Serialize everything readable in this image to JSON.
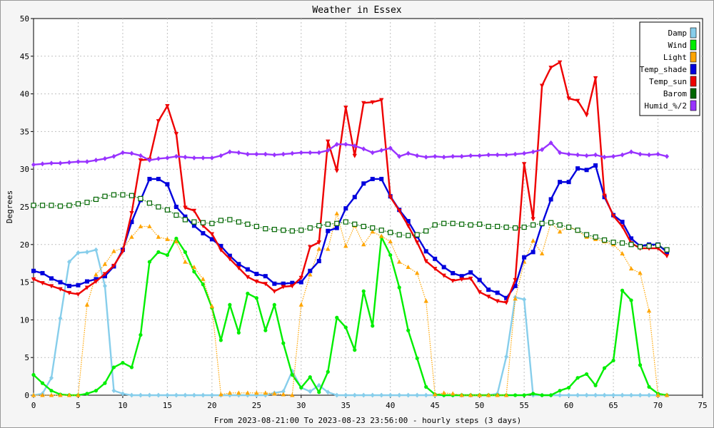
{
  "chart_data": {
    "type": "line",
    "title": "Weather in Essex",
    "ylabel": "Degrees",
    "xlabel": "From 2023-08-21:00 To 2023-08-23 23:56:00 - hourly steps (3 days)",
    "xlim": [
      0,
      75
    ],
    "ylim": [
      0,
      50
    ],
    "x_ticks": [
      0,
      5,
      10,
      15,
      20,
      25,
      30,
      35,
      40,
      45,
      50,
      55,
      60,
      65,
      70,
      75
    ],
    "y_ticks": [
      0,
      5,
      10,
      15,
      20,
      25,
      30,
      35,
      40,
      45,
      50
    ],
    "grid": true,
    "legend_position": "top-right",
    "series": [
      {
        "name": "Damp",
        "color": "#87ceeb",
        "marker": "diamond",
        "line": "solid",
        "values": [
          0,
          0.2,
          2.3,
          10.2,
          17.7,
          18.9,
          19.0,
          19.3,
          14.5,
          0.6,
          0.2,
          0,
          0,
          0,
          0,
          0,
          0,
          0,
          0,
          0,
          0,
          0,
          0,
          0,
          0,
          0,
          0,
          0.3,
          0.5,
          3.2,
          1.0,
          0.5,
          1.3,
          0.4,
          0,
          0,
          0,
          0,
          0,
          0,
          0,
          0,
          0,
          0,
          0,
          0,
          0,
          0,
          0,
          0,
          0,
          0,
          0.2,
          5.1,
          13.0,
          12.7,
          0,
          0,
          0,
          0,
          0,
          0,
          0,
          0,
          0,
          0,
          0,
          0,
          0,
          0,
          0,
          0
        ]
      },
      {
        "name": "Wind",
        "color": "#00ee00",
        "marker": "circle",
        "line": "solid",
        "values": [
          2.7,
          1.6,
          0.6,
          0.1,
          0,
          0,
          0.2,
          0.6,
          1.6,
          3.7,
          4.3,
          3.7,
          8.0,
          17.7,
          19.0,
          18.6,
          20.8,
          19.0,
          16.4,
          14.7,
          11.6,
          7.3,
          12.0,
          8.3,
          13.5,
          12.9,
          8.6,
          12.0,
          6.9,
          2.7,
          1.0,
          2.4,
          0.4,
          3.1,
          10.3,
          9.0,
          6.0,
          13.8,
          9.2,
          21.0,
          18.6,
          14.3,
          8.6,
          4.9,
          1.1,
          0.1,
          0,
          0,
          0,
          0,
          0,
          0,
          0,
          0,
          0,
          0,
          0.2,
          0,
          0,
          0.6,
          1.0,
          2.3,
          2.8,
          1.3,
          3.6,
          4.6,
          13.9,
          12.6,
          4.0,
          1.1,
          0.2,
          0
        ]
      },
      {
        "name": "Light",
        "color": "#ffa500",
        "marker": "triangle",
        "line": "dotted",
        "values": [
          0,
          0,
          0,
          0,
          0,
          0,
          12.0,
          16.0,
          17.4,
          19.1,
          19.5,
          21.0,
          22.4,
          22.4,
          21.0,
          20.7,
          20.4,
          17.7,
          17.0,
          15.4,
          11.8,
          0.1,
          0.3,
          0.3,
          0.3,
          0.3,
          0.3,
          0.2,
          0.1,
          0,
          12.0,
          16.0,
          19.4,
          19.4,
          24.1,
          19.8,
          22.5,
          20.0,
          21.7,
          21.1,
          20.4,
          17.7,
          17.0,
          16.2,
          12.5,
          0.1,
          0.3,
          0.2,
          0,
          0,
          0,
          0,
          0,
          0,
          12.8,
          17.7,
          20.5,
          18.8,
          22.9,
          21.7,
          22.4,
          21.8,
          21.0,
          20.7,
          20.4,
          20.0,
          18.8,
          16.8,
          16.2,
          11.2,
          0,
          0
        ]
      },
      {
        "name": "Temp_shade",
        "color": "#0000dd",
        "marker": "square",
        "line": "solid",
        "values": [
          16.5,
          16.2,
          15.5,
          15.0,
          14.5,
          14.6,
          15.1,
          15.4,
          15.8,
          17.1,
          19.3,
          23.0,
          25.9,
          28.7,
          28.7,
          28.0,
          25.0,
          23.7,
          22.5,
          21.5,
          20.7,
          19.8,
          18.5,
          17.4,
          16.7,
          16.1,
          15.8,
          14.8,
          14.8,
          14.9,
          15.0,
          16.5,
          17.8,
          21.8,
          22.2,
          24.8,
          26.3,
          28.1,
          28.7,
          28.7,
          26.4,
          24.6,
          23.1,
          21.1,
          19.1,
          18.1,
          17.0,
          16.2,
          15.8,
          16.3,
          15.3,
          14.0,
          13.6,
          12.9,
          14.5,
          18.3,
          19.0,
          22.7,
          26.0,
          28.3,
          28.3,
          30.1,
          29.9,
          30.5,
          26.3,
          23.9,
          23.0,
          20.8,
          19.8,
          20.0,
          20.0,
          19.0
        ]
      },
      {
        "name": "Temp_sun",
        "color": "#ee0000",
        "marker": "inv-triangle",
        "line": "solid",
        "values": [
          15.4,
          14.9,
          14.5,
          14.1,
          13.6,
          13.4,
          14.3,
          15.1,
          16.1,
          17.2,
          19.1,
          24.2,
          31.2,
          31.3,
          36.4,
          38.4,
          34.7,
          24.9,
          24.5,
          22.5,
          21.4,
          19.3,
          18.1,
          16.9,
          15.7,
          15.1,
          14.8,
          13.8,
          14.4,
          14.5,
          15.6,
          19.7,
          20.3,
          33.7,
          29.8,
          38.2,
          31.8,
          38.8,
          38.9,
          39.2,
          26.3,
          24.5,
          22.5,
          20.3,
          17.8,
          16.8,
          15.9,
          15.2,
          15.4,
          15.5,
          13.7,
          13.1,
          12.5,
          12.3,
          15.3,
          30.7,
          23.4,
          41.1,
          43.5,
          44.2,
          39.4,
          39.1,
          37.2,
          42.1,
          26.5,
          23.8,
          22.4,
          20.2,
          19.5,
          19.5,
          19.5,
          18.5
        ]
      },
      {
        "name": "Barom",
        "color": "#006600",
        "marker": "hollow-square",
        "line": "dotted",
        "values": [
          25.2,
          25.2,
          25.2,
          25.1,
          25.2,
          25.4,
          25.6,
          26.0,
          26.4,
          26.6,
          26.6,
          26.5,
          26.1,
          25.5,
          25.0,
          24.6,
          23.9,
          23.3,
          23.0,
          22.9,
          22.8,
          23.2,
          23.3,
          23.0,
          22.7,
          22.4,
          22.1,
          22.0,
          21.9,
          21.8,
          21.9,
          22.2,
          22.5,
          22.7,
          22.8,
          23.0,
          22.7,
          22.4,
          22.2,
          21.9,
          21.6,
          21.3,
          21.2,
          21.3,
          21.8,
          22.6,
          22.8,
          22.8,
          22.7,
          22.6,
          22.7,
          22.4,
          22.4,
          22.3,
          22.2,
          22.3,
          22.6,
          22.8,
          22.9,
          22.6,
          22.3,
          21.9,
          21.3,
          21.0,
          20.6,
          20.3,
          20.2,
          20.0,
          19.7,
          19.8,
          19.9,
          19.3
        ]
      },
      {
        "name": "Humid_%/2",
        "color": "#9933ff",
        "marker": "diamond",
        "line": "solid",
        "values": [
          30.6,
          30.7,
          30.8,
          30.8,
          30.9,
          31.0,
          31.0,
          31.2,
          31.4,
          31.7,
          32.2,
          32.1,
          31.8,
          31.2,
          31.4,
          31.5,
          31.7,
          31.6,
          31.5,
          31.5,
          31.5,
          31.8,
          32.3,
          32.2,
          32.0,
          32.0,
          32.0,
          31.9,
          32.0,
          32.1,
          32.2,
          32.2,
          32.2,
          32.5,
          33.3,
          33.3,
          33.1,
          32.7,
          32.2,
          32.5,
          32.8,
          31.7,
          32.1,
          31.8,
          31.6,
          31.7,
          31.6,
          31.7,
          31.7,
          31.8,
          31.8,
          31.9,
          31.9,
          31.9,
          32.0,
          32.1,
          32.3,
          32.6,
          33.5,
          32.2,
          32.0,
          31.9,
          31.8,
          31.9,
          31.6,
          31.7,
          31.9,
          32.3,
          32.0,
          31.9,
          32.0,
          31.7
        ]
      }
    ]
  }
}
